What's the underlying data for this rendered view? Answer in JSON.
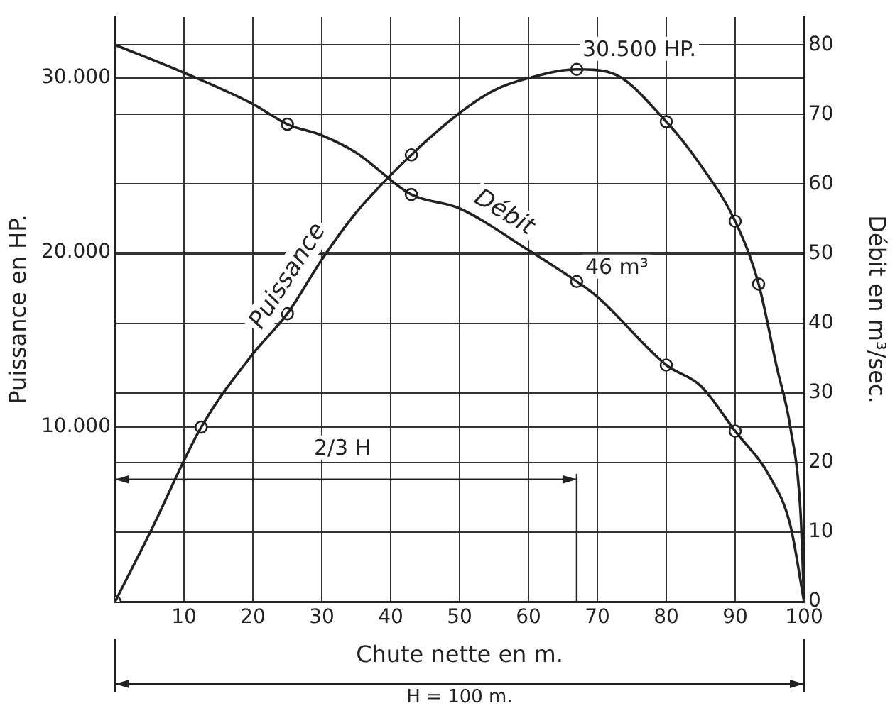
{
  "chart_data": {
    "type": "line",
    "xlabel": "Chute nette en m.",
    "ylabel": "Puissance en HP.",
    "y2label": "Débit en m³/sec.",
    "xlim": [
      0,
      100
    ],
    "xticks": [
      10,
      20,
      30,
      40,
      50,
      60,
      70,
      80,
      90,
      100
    ],
    "ylim": [
      0,
      33500
    ],
    "yticks": [
      {
        "value": 10000,
        "label": "10.000"
      },
      {
        "value": 20000,
        "label": "20.000"
      },
      {
        "value": 30000,
        "label": "30.000"
      }
    ],
    "y2lim": [
      0,
      84
    ],
    "y2ticks": [
      0,
      10,
      20,
      30,
      40,
      50,
      60,
      70,
      80
    ],
    "grid": true,
    "legend": false,
    "series": [
      {
        "name": "Puissance",
        "type": "line",
        "marker": "none",
        "color": "#222222",
        "x": [
          0,
          5,
          12.5,
          20,
          25,
          30,
          35,
          43,
          50,
          55,
          60,
          67,
          72,
          80,
          85,
          90,
          93.4,
          96,
          98,
          99.5,
          100
        ],
        "values": [
          0,
          3900,
          10000,
          14200,
          16500,
          19600,
          22300,
          25600,
          28000,
          29300,
          30000,
          30500,
          30300,
          27500,
          25000,
          21800,
          18200,
          13500,
          10000,
          5000,
          0
        ]
      },
      {
        "name": "Débit",
        "type": "line",
        "axis": "y2",
        "marker": "none",
        "color": "#222222",
        "x": [
          0,
          10,
          20,
          25,
          30,
          35,
          43,
          50,
          60,
          67,
          70,
          80,
          85,
          90,
          95,
          98,
          100
        ],
        "values": [
          80,
          76,
          71.5,
          68.6,
          67,
          64.5,
          58.5,
          56.5,
          50.5,
          46,
          43.8,
          34,
          31,
          24.5,
          18,
          11,
          0
        ]
      },
      {
        "type": "scatter",
        "marker": "circle",
        "color": "#222222",
        "x": [
          0,
          12.5,
          25,
          43,
          67,
          80,
          90,
          93.4
        ],
        "values": [
          0,
          10000,
          16500,
          25600,
          30500,
          27500,
          21800,
          18200
        ]
      },
      {
        "type": "scatter",
        "axis": "y2",
        "marker": "circle",
        "color": "#222222",
        "x": [
          25,
          43,
          67,
          80,
          90
        ],
        "values": [
          68.6,
          58.5,
          46,
          34,
          24.5
        ]
      }
    ],
    "annotations": [
      {
        "text": "30.500 HP.",
        "x": 67,
        "y": 30500
      },
      "46 m³",
      "2/3 H",
      "H = 100 m."
    ]
  }
}
